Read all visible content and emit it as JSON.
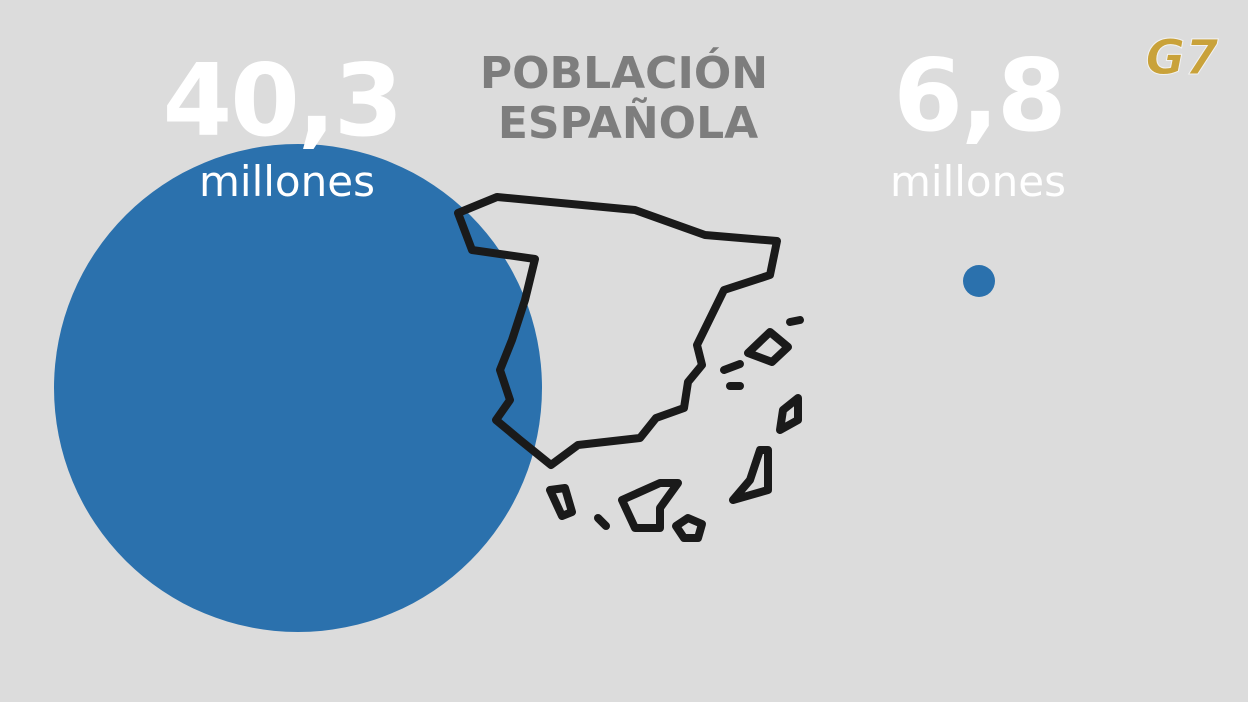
{
  "header": {
    "title_lines": [
      "POBLACIÓN",
      "ESPAÑOLA"
    ]
  },
  "items": [
    {
      "value": "40,3",
      "unit": "millones"
    },
    {
      "value": "6,8",
      "unit": "millones"
    }
  ],
  "logo": "G7"
}
